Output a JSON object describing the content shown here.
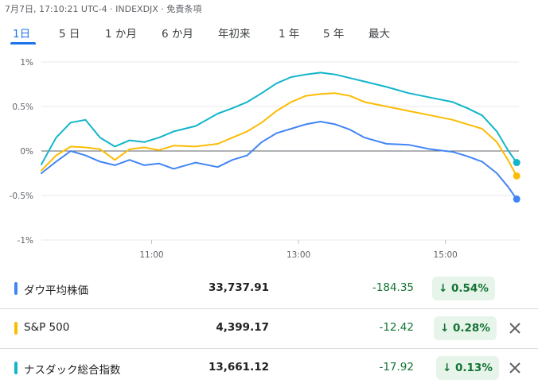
{
  "header": {
    "text": "7月7日, 17:10:21 UTC-4 · INDEXDJX · 免責条項"
  },
  "tabs": [
    {
      "label": "1日",
      "active": true
    },
    {
      "label": "5 日",
      "active": false
    },
    {
      "label": "1 か月",
      "active": false
    },
    {
      "label": "6 か月",
      "active": false
    },
    {
      "label": "年初来",
      "active": false
    },
    {
      "label": "1 年",
      "active": false
    },
    {
      "label": "5 年",
      "active": false
    },
    {
      "label": "最大",
      "active": false
    }
  ],
  "chart_data": {
    "type": "line",
    "x_axis": {
      "ticks": [
        "11:00",
        "13:00",
        "15:00"
      ],
      "tick_hours": [
        11,
        13,
        15
      ],
      "range_hours": [
        9.5,
        16
      ]
    },
    "y_axis": {
      "ticks": [
        "1%",
        "0.5%",
        "0%",
        "-0.5%",
        "-1%"
      ],
      "tick_values": [
        1,
        0.5,
        0,
        -0.5,
        -1
      ],
      "range": [
        -1,
        1
      ]
    },
    "baseline": 0,
    "gridlines": true,
    "series": [
      {
        "name": "ダウ平均株価",
        "color": "#4285f4",
        "x": [
          9.5,
          9.7,
          9.9,
          10.1,
          10.3,
          10.5,
          10.7,
          10.9,
          11.1,
          11.3,
          11.6,
          11.9,
          12.1,
          12.3,
          12.5,
          12.7,
          12.9,
          13.1,
          13.3,
          13.5,
          13.7,
          13.9,
          14.2,
          14.5,
          14.8,
          15.1,
          15.3,
          15.5,
          15.7,
          15.85,
          15.97
        ],
        "y": [
          -0.25,
          -0.12,
          0.0,
          -0.05,
          -0.12,
          -0.16,
          -0.1,
          -0.16,
          -0.14,
          -0.2,
          -0.13,
          -0.18,
          -0.1,
          -0.05,
          0.1,
          0.2,
          0.25,
          0.3,
          0.33,
          0.3,
          0.24,
          0.15,
          0.08,
          0.07,
          0.02,
          -0.01,
          -0.06,
          -0.12,
          -0.25,
          -0.4,
          -0.54
        ]
      },
      {
        "name": "S&P 500",
        "color": "#fbbc04",
        "x": [
          9.5,
          9.7,
          9.9,
          10.1,
          10.3,
          10.5,
          10.7,
          10.9,
          11.1,
          11.3,
          11.6,
          11.9,
          12.1,
          12.3,
          12.5,
          12.7,
          12.9,
          13.1,
          13.3,
          13.5,
          13.7,
          13.9,
          14.2,
          14.5,
          14.8,
          15.1,
          15.3,
          15.5,
          15.7,
          15.85,
          15.97
        ],
        "y": [
          -0.22,
          -0.05,
          0.05,
          0.04,
          0.02,
          -0.1,
          0.02,
          0.04,
          0.01,
          0.06,
          0.05,
          0.08,
          0.15,
          0.22,
          0.32,
          0.45,
          0.55,
          0.62,
          0.64,
          0.65,
          0.62,
          0.55,
          0.5,
          0.45,
          0.4,
          0.35,
          0.3,
          0.25,
          0.1,
          -0.1,
          -0.28
        ]
      },
      {
        "name": "ナスダック総合指数",
        "color": "#12b5cb",
        "x": [
          9.5,
          9.7,
          9.9,
          10.1,
          10.3,
          10.5,
          10.7,
          10.9,
          11.1,
          11.3,
          11.6,
          11.9,
          12.1,
          12.3,
          12.5,
          12.7,
          12.9,
          13.1,
          13.3,
          13.5,
          13.7,
          13.9,
          14.2,
          14.5,
          14.8,
          15.1,
          15.3,
          15.5,
          15.7,
          15.85,
          15.97
        ],
        "y": [
          -0.15,
          0.15,
          0.32,
          0.35,
          0.15,
          0.05,
          0.12,
          0.1,
          0.15,
          0.22,
          0.28,
          0.42,
          0.48,
          0.55,
          0.65,
          0.76,
          0.83,
          0.86,
          0.88,
          0.86,
          0.82,
          0.78,
          0.72,
          0.65,
          0.6,
          0.55,
          0.48,
          0.4,
          0.22,
          0.01,
          -0.13
        ]
      }
    ]
  },
  "rows": [
    {
      "color": "#4285f4",
      "name": "ダウ平均株価",
      "price": "33,737.91",
      "change": "-184.35",
      "percent": "↓ 0.54%",
      "removable": false
    },
    {
      "color": "#fbbc04",
      "name": "S&P 500",
      "price": "4,399.17",
      "change": "-12.42",
      "percent": "↓ 0.28%",
      "removable": true
    },
    {
      "color": "#12b5cb",
      "name": "ナスダック総合指数",
      "price": "13,661.12",
      "change": "-17.92",
      "percent": "↓ 0.13%",
      "removable": true
    }
  ]
}
